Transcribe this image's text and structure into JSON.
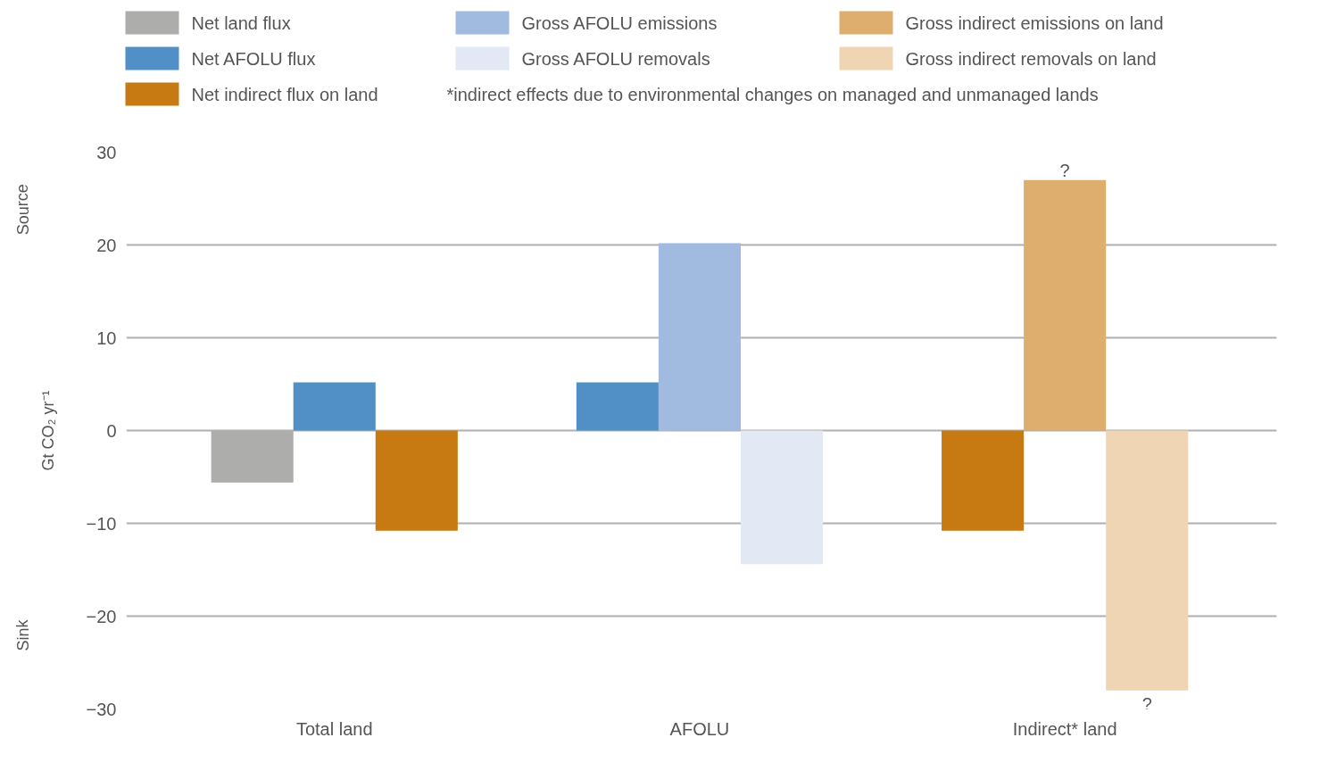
{
  "chart_data": {
    "type": "bar",
    "ylabel": "Gt CO₂ yr⁻¹",
    "categories": [
      "Total land",
      "AFOLU",
      "Indirect* land"
    ],
    "series": [
      {
        "name": "Net land flux",
        "color": "#adadab",
        "values": [
          -5.6,
          null,
          null
        ]
      },
      {
        "name": "Net AFOLU flux",
        "color": "#5190c7",
        "values": [
          5.2,
          5.2,
          null
        ]
      },
      {
        "name": "Net indirect flux on land",
        "color": "#c77a12",
        "values": [
          -10.8,
          null,
          -10.8
        ]
      },
      {
        "name": "Gross AFOLU emissions",
        "color": "#a1badf",
        "values": [
          null,
          20.2,
          null
        ]
      },
      {
        "name": "Gross AFOLU removals",
        "color": "#e2e8f4",
        "values": [
          null,
          -14.4,
          null
        ]
      },
      {
        "name": "Gross indirect emissions on land",
        "color": "#deae6e",
        "values": [
          null,
          null,
          27
        ]
      },
      {
        "name": "Gross indirect removals on land",
        "color": "#efd5b4",
        "values": [
          null,
          null,
          -28
        ]
      }
    ],
    "ylim": [
      -30,
      30
    ],
    "yticks": [
      {
        "value": -30,
        "label": "−30"
      },
      {
        "value": -20,
        "label": "−20"
      },
      {
        "value": -10,
        "label": "−10"
      },
      0,
      10,
      20,
      30
    ],
    "grid": "y",
    "legend": "top",
    "annotations": [
      "*indirect effects due to environmental changes on managed and unmanaged lands",
      "Source",
      "Sink",
      {
        "text": "?",
        "x": "Indirect* land",
        "y": 27
      },
      "?"
    ]
  }
}
